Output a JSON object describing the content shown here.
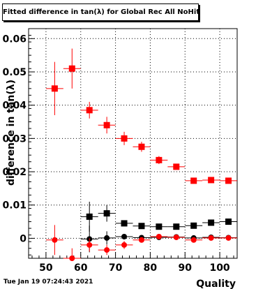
{
  "chart_data": {
    "type": "scatter",
    "title": "Fitted difference in tan(λ) for Global Rec All NoHits",
    "xlabel": "Quality",
    "ylabel": "difference in tan(λ)",
    "xlim": [
      45,
      105
    ],
    "ylim": [
      -0.006,
      0.063
    ],
    "grid": true,
    "x_ticks": [
      "50",
      "60",
      "70",
      "80",
      "90",
      "100"
    ],
    "y_ticks": [
      "0",
      "0.01",
      "0.02",
      "0.03",
      "0.04",
      "0.05",
      "0.06"
    ],
    "series": [
      {
        "color": "#ff0000",
        "marker": "square",
        "x": [
          52.5,
          57.5,
          62.5,
          67.5,
          72.5,
          77.5,
          82.5,
          87.5,
          92.5,
          97.5,
          102.5
        ],
        "y": [
          0.045,
          0.051,
          0.0385,
          0.034,
          0.03,
          0.0275,
          0.0235,
          0.0215,
          0.0173,
          0.0175,
          0.0173
        ],
        "yerr": [
          0.008,
          0.006,
          0.0025,
          0.0025,
          0.002,
          0.0015,
          0.0012,
          0.0008,
          0.0005,
          0.0004,
          0.0004
        ]
      },
      {
        "color": "#000000",
        "marker": "square",
        "x": [
          62.5,
          67.5,
          72.5,
          77.5,
          82.5,
          87.5,
          92.5,
          97.5,
          102.5
        ],
        "y": [
          0.0065,
          0.0075,
          0.0045,
          0.0037,
          0.0035,
          0.0035,
          0.0038,
          0.0047,
          0.005
        ],
        "yerr": [
          0.0045,
          0.0025,
          0.0008,
          0.0006,
          0.0004,
          0.0003,
          0.0003,
          0.0003,
          0.0003
        ]
      },
      {
        "color": "#000000",
        "marker": "circle",
        "x": [
          62.5,
          67.5,
          72.5,
          77.5,
          82.5,
          87.5,
          92.5,
          97.5,
          102.5
        ],
        "y": [
          -0.0002,
          0.0001,
          0.0005,
          0.0002,
          0.0003,
          0.0004,
          0.0001,
          0.0003,
          0.0002
        ],
        "yerr": [
          0.004,
          0.002,
          0.0007,
          0.0005,
          0.0003,
          0.0003,
          0.0002,
          0.0002,
          0.0002
        ]
      },
      {
        "color": "#ff0000",
        "marker": "circle",
        "x": [
          52.5,
          57.5,
          62.5,
          67.5,
          72.5,
          77.5,
          82.5,
          87.5,
          92.5,
          97.5,
          102.5
        ],
        "y": [
          -0.0005,
          -0.006,
          -0.002,
          -0.0035,
          -0.002,
          -0.0005,
          0.0005,
          0.0003,
          -0.0005,
          0.0001,
          0.0001
        ],
        "yerr": [
          0.0045,
          0.003,
          0.002,
          0.0015,
          0.0012,
          0.0008,
          0.0005,
          0.0004,
          0.0003,
          0.0003,
          0.0003
        ]
      }
    ]
  },
  "timestamp": "Tue Jan 19 07:24:43 2021"
}
